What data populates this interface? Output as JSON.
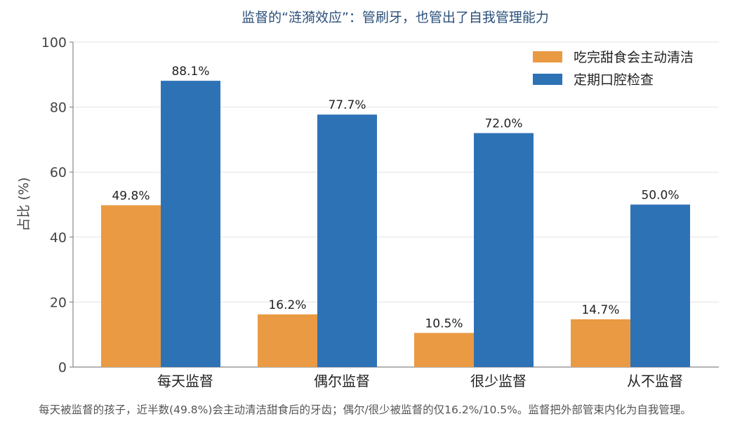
{
  "chart_data": {
    "type": "bar",
    "title": "监督的“涟漪效应”：管刷牙，也管出了自我管理能力",
    "xlabel": "",
    "ylabel": "占比 (%)",
    "ylim": [
      0,
      100
    ],
    "yticks": [
      0,
      20,
      40,
      60,
      80,
      100
    ],
    "categories": [
      "每天监督",
      "偶尔监督",
      "很少监督",
      "从不监督"
    ],
    "series": [
      {
        "name": "吃完甜食会主动清洁",
        "color": "#ea9a42",
        "values": [
          49.8,
          16.2,
          10.5,
          14.7
        ]
      },
      {
        "name": "定期口腔检查",
        "color": "#2e72b6",
        "values": [
          88.1,
          77.7,
          72.0,
          50.0
        ]
      }
    ],
    "value_suffix": "%",
    "grid": true,
    "legend_position": "top-right"
  },
  "footer": {
    "note": "每天被监督的孩子，近半数(49.8%)会主动清洁甜食后的牙齿；偶尔/很少被监督的仅16.2%/10.5%。监督把外部管束内化为自我管理。"
  }
}
